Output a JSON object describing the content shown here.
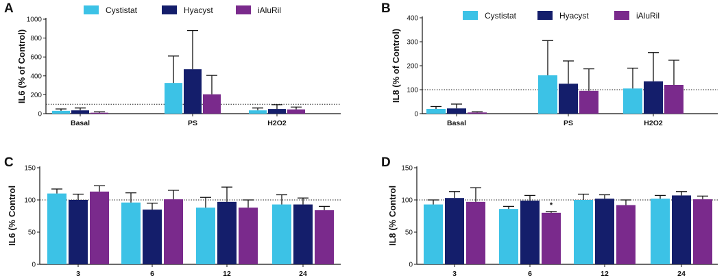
{
  "colors": {
    "Cystistat": "#3cc2e6",
    "Hyacyst": "#141e6b",
    "iAluRil": "#7a2a8c",
    "axis": "#111111",
    "err": "#111111"
  },
  "chart_data": [
    {
      "panel": "A",
      "type": "bar",
      "ylabel": "IL6 (% of Control)",
      "ylim": [
        0,
        1000
      ],
      "yticks": [
        "0",
        "200",
        "400",
        "600",
        "800",
        "1000"
      ],
      "ytick_values": [
        0,
        200,
        400,
        600,
        800,
        1000
      ],
      "reference_line": 100,
      "categories": [
        "Basal",
        "PS",
        "H2O2"
      ],
      "legend": [
        "Cystistat",
        "Hyacyst",
        "iAluRil"
      ],
      "series": [
        {
          "name": "Cystistat",
          "values": [
            30,
            325,
            35
          ],
          "errors": [
            20,
            285,
            25
          ]
        },
        {
          "name": "Hyacyst",
          "values": [
            35,
            470,
            50
          ],
          "errors": [
            25,
            410,
            45
          ]
        },
        {
          "name": "iAluRil",
          "values": [
            10,
            205,
            45
          ],
          "errors": [
            10,
            200,
            25
          ]
        }
      ]
    },
    {
      "panel": "B",
      "type": "bar",
      "ylabel": "IL8 (% of Control)",
      "ylim": [
        0,
        400
      ],
      "yticks": [
        "0",
        "100",
        "200",
        "300",
        "400"
      ],
      "ytick_values": [
        0,
        100,
        200,
        300,
        400
      ],
      "reference_line": 100,
      "categories": [
        "Basal",
        "PS",
        "H2O2"
      ],
      "legend": [
        "Cystistat",
        "Hyacyst",
        "iAluRil"
      ],
      "series": [
        {
          "name": "Cystistat",
          "values": [
            20,
            160,
            105
          ],
          "errors": [
            10,
            145,
            85
          ]
        },
        {
          "name": "Hyacyst",
          "values": [
            22,
            125,
            135
          ],
          "errors": [
            18,
            95,
            120
          ]
        },
        {
          "name": "iAluRil",
          "values": [
            5,
            95,
            120
          ],
          "errors": [
            3,
            92,
            103
          ]
        }
      ]
    },
    {
      "panel": "C",
      "type": "bar",
      "ylabel": "IL6 (% Control",
      "ylim": [
        0,
        150
      ],
      "yticks": [
        "0",
        "50",
        "100",
        "150"
      ],
      "ytick_values": [
        0,
        50,
        100,
        150
      ],
      "reference_line": 100,
      "categories": [
        "3",
        "6",
        "12",
        "24"
      ],
      "legend": [],
      "series": [
        {
          "name": "Cystistat",
          "values": [
            110,
            96,
            88,
            93
          ],
          "errors": [
            7,
            15,
            16,
            15
          ]
        },
        {
          "name": "Hyacyst",
          "values": [
            100,
            85,
            97,
            93
          ],
          "errors": [
            9,
            10,
            23,
            10
          ]
        },
        {
          "name": "iAluRil",
          "values": [
            113,
            101,
            88,
            84
          ],
          "errors": [
            9,
            14,
            12,
            6
          ]
        }
      ]
    },
    {
      "panel": "D",
      "type": "bar",
      "ylabel": "IL8 (% Control",
      "ylim": [
        0,
        150
      ],
      "yticks": [
        "0",
        "50",
        "100",
        "150"
      ],
      "ytick_values": [
        0,
        50,
        100,
        150
      ],
      "reference_line": 100,
      "categories": [
        "3",
        "6",
        "12",
        "24"
      ],
      "legend": [],
      "annotation": {
        "text": "*",
        "category_index": 1,
        "series_index": 2
      },
      "series": [
        {
          "name": "Cystistat",
          "values": [
            93,
            86,
            100,
            102
          ],
          "errors": [
            7,
            4,
            9,
            5
          ]
        },
        {
          "name": "Hyacyst",
          "values": [
            103,
            99,
            102,
            107
          ],
          "errors": [
            10,
            8,
            6,
            6
          ]
        },
        {
          "name": "iAluRil",
          "values": [
            97,
            80,
            92,
            101
          ],
          "errors": [
            22,
            2,
            8,
            5
          ]
        }
      ]
    }
  ]
}
